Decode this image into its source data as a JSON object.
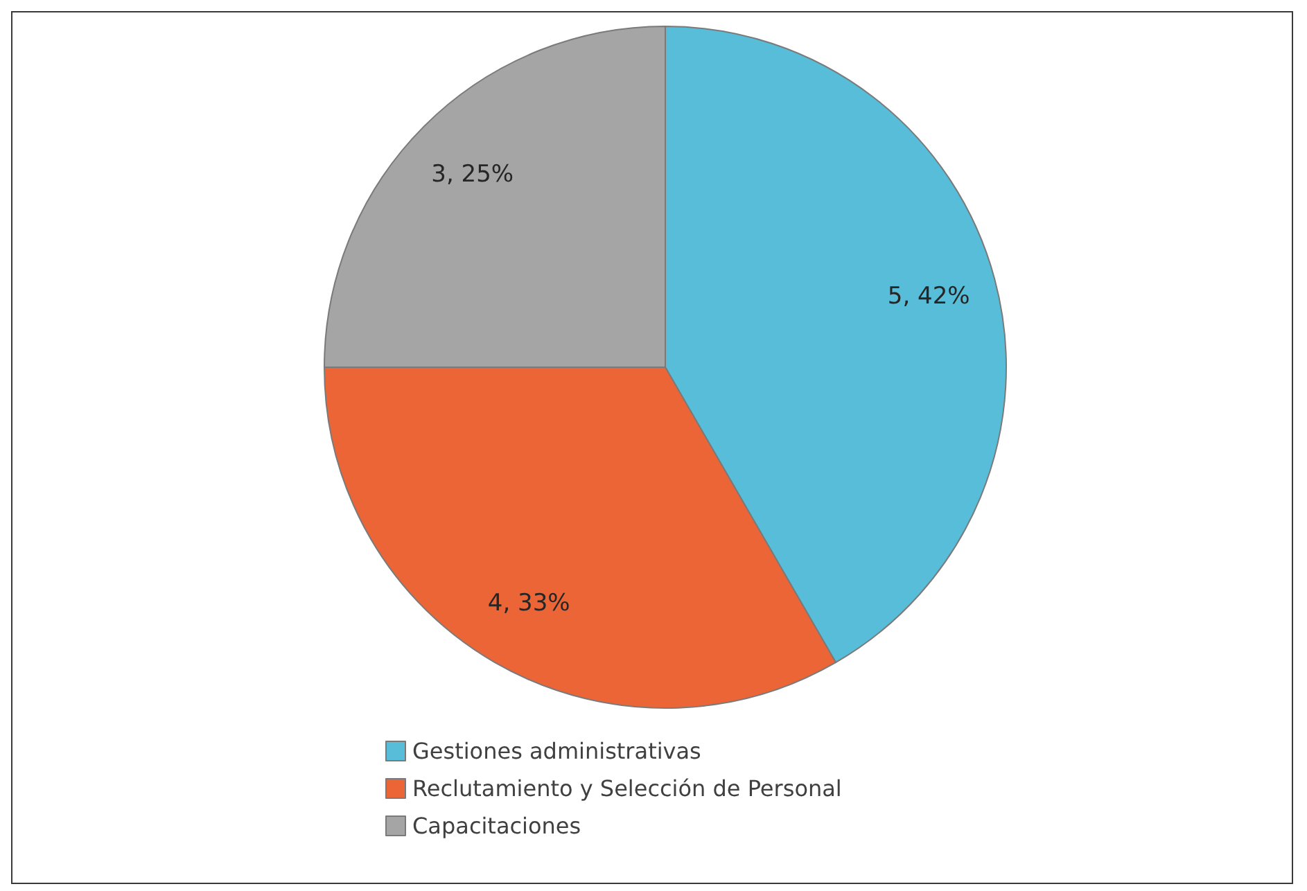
{
  "chart_data": {
    "type": "pie",
    "categories": [
      "Gestiones administrativas",
      "Reclutamiento y Selección de Personal",
      "Capacitaciones"
    ],
    "values": [
      5,
      4,
      3
    ],
    "colors": [
      "#58bdd8",
      "#ec6536",
      "#a5a5a5"
    ],
    "value_labels": [
      "5, 42%",
      "4, 33%",
      "3, 25%"
    ],
    "legend": "bottom"
  }
}
